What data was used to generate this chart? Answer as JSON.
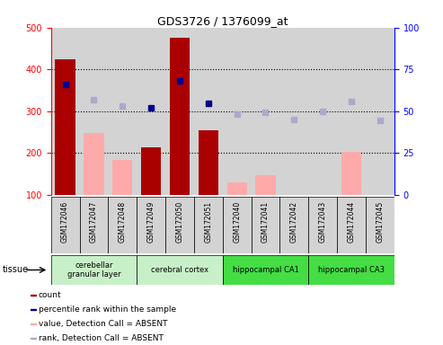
{
  "title": "GDS3726 / 1376099_at",
  "samples": [
    "GSM172046",
    "GSM172047",
    "GSM172048",
    "GSM172049",
    "GSM172050",
    "GSM172051",
    "GSM172040",
    "GSM172041",
    "GSM172042",
    "GSM172043",
    "GSM172044",
    "GSM172045"
  ],
  "count_values": [
    425,
    null,
    null,
    213,
    475,
    255,
    null,
    null,
    null,
    null,
    null,
    null
  ],
  "absent_value_bars": [
    null,
    248,
    183,
    null,
    null,
    null,
    130,
    148,
    null,
    null,
    203,
    null
  ],
  "percentile_rank_present": [
    365,
    null,
    null,
    308,
    373,
    320,
    null,
    null,
    null,
    null,
    null,
    null
  ],
  "percentile_rank_absent": [
    null,
    328,
    313,
    null,
    null,
    null,
    293,
    298,
    280,
    300,
    323,
    278
  ],
  "ylim_left": [
    100,
    500
  ],
  "ylim_right": [
    0,
    100
  ],
  "yticks_left": [
    100,
    200,
    300,
    400,
    500
  ],
  "yticks_right": [
    0,
    25,
    50,
    75,
    100
  ],
  "tissue_groups": [
    {
      "label": "cerebellar\ngranular layer",
      "start": 0,
      "end": 3,
      "color": "#c8f0c8"
    },
    {
      "label": "cerebral cortex",
      "start": 3,
      "end": 6,
      "color": "#c8f0c8"
    },
    {
      "label": "hippocampal CA1",
      "start": 6,
      "end": 9,
      "color": "#44dd44"
    },
    {
      "label": "hippocampal CA3",
      "start": 9,
      "end": 12,
      "color": "#44dd44"
    }
  ],
  "count_color": "#aa0000",
  "absent_bar_color": "#ffaaaa",
  "rank_present_color": "#00008b",
  "rank_absent_color": "#aaaacc",
  "bar_bg_color": "#d3d3d3",
  "grid_color": "#000000",
  "legend_items": [
    {
      "label": "count",
      "color": "#aa0000"
    },
    {
      "label": "percentile rank within the sample",
      "color": "#00008b"
    },
    {
      "label": "value, Detection Call = ABSENT",
      "color": "#ffaaaa"
    },
    {
      "label": "rank, Detection Call = ABSENT",
      "color": "#aaaacc"
    }
  ]
}
